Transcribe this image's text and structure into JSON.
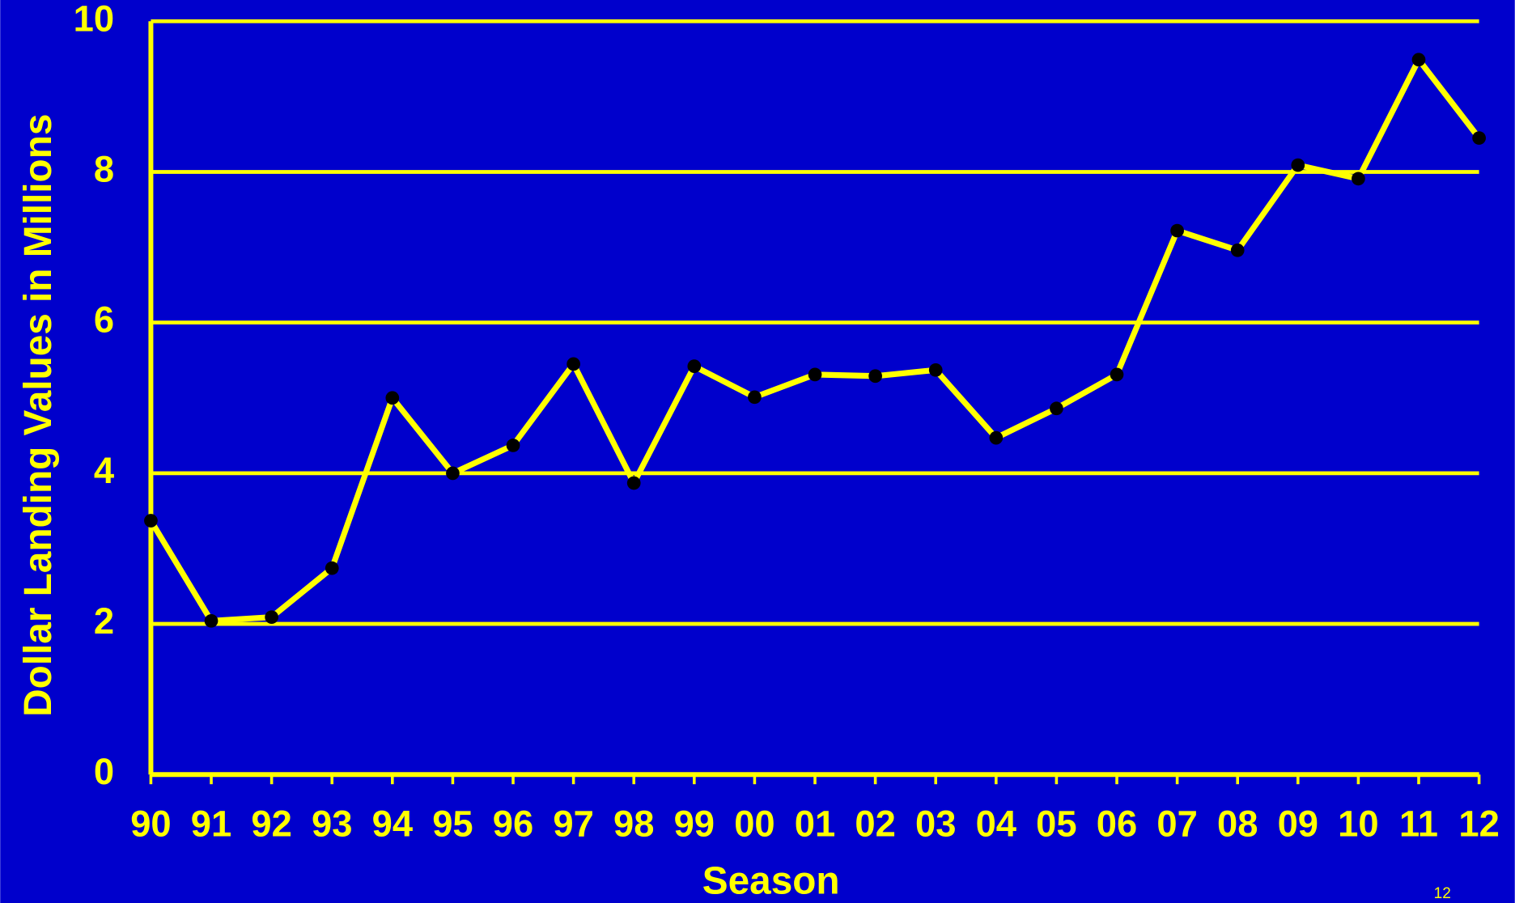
{
  "chart_data": {
    "type": "line",
    "ylabel": "Dollar Landing Values in Millions",
    "xlabel": "Season",
    "page_number": "12",
    "categories": [
      "90",
      "91",
      "92",
      "93",
      "94",
      "95",
      "96",
      "97",
      "98",
      "99",
      "00",
      "01",
      "02",
      "03",
      "04",
      "05",
      "06",
      "07",
      "08",
      "09",
      "10",
      "11",
      "12"
    ],
    "series": [
      {
        "name": "Dollar Landing Values",
        "color": "#ffff00",
        "marker_color": "#000000",
        "values": [
          3.37,
          2.04,
          2.09,
          2.74,
          5.0,
          4.0,
          4.37,
          5.45,
          3.87,
          5.42,
          5.01,
          5.31,
          5.29,
          5.37,
          4.47,
          4.86,
          5.31,
          7.22,
          6.96,
          8.09,
          7.91,
          9.49,
          8.45
        ]
      }
    ],
    "ylim": [
      0,
      10
    ],
    "yticks": [
      0,
      2,
      4,
      6,
      8,
      10
    ],
    "grid": true,
    "background": "#0000cc"
  }
}
